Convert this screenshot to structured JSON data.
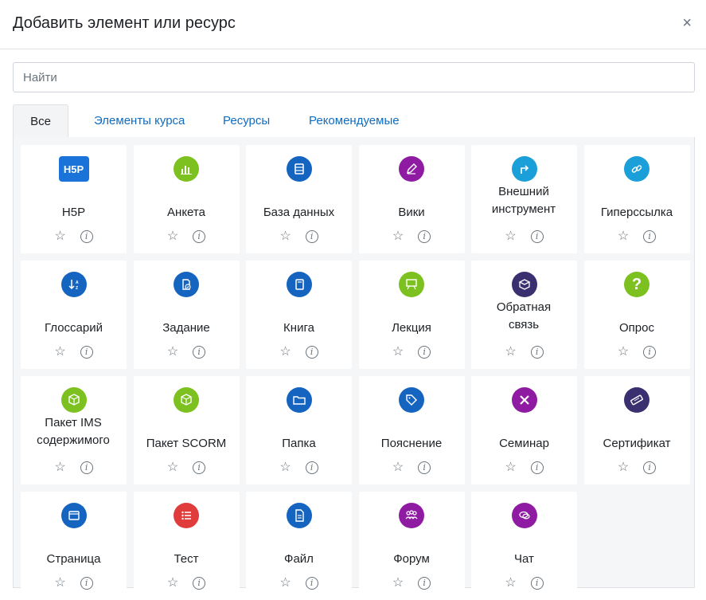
{
  "modal": {
    "title": "Добавить элемент или ресурс",
    "close": "×"
  },
  "search": {
    "placeholder": "Найти"
  },
  "tabs": [
    "Все",
    "Элементы курса",
    "Ресурсы",
    "Рекомендуемые"
  ],
  "items": [
    {
      "label": "H5P",
      "icon": "h5p-icon",
      "color": "#1a73d9"
    },
    {
      "label": "Анкета",
      "icon": "chart-icon",
      "color": "#7cc120"
    },
    {
      "label": "База данных",
      "icon": "database-icon",
      "color": "#1565c0"
    },
    {
      "label": "Вики",
      "icon": "pencil-icon",
      "color": "#8e1ba2"
    },
    {
      "label": "Внешний инструмент",
      "icon": "external-icon",
      "color": "#1a9fd9"
    },
    {
      "label": "Гиперссылка",
      "icon": "link-icon",
      "color": "#1a9fd9"
    },
    {
      "label": "Глоссарий",
      "icon": "sort-icon",
      "color": "#1565c0"
    },
    {
      "label": "Задание",
      "icon": "assignment-icon",
      "color": "#1565c0"
    },
    {
      "label": "Книга",
      "icon": "book-icon",
      "color": "#1565c0"
    },
    {
      "label": "Лекция",
      "icon": "presentation-icon",
      "color": "#7cc120"
    },
    {
      "label": "Обратная связь",
      "icon": "feedback-icon",
      "color": "#3a3070"
    },
    {
      "label": "Опрос",
      "icon": "question-icon",
      "color": "#7cc120"
    },
    {
      "label": "Пакет IMS содержимого",
      "icon": "package-icon",
      "color": "#7cc120"
    },
    {
      "label": "Пакет SCORM",
      "icon": "package-icon",
      "color": "#7cc120"
    },
    {
      "label": "Папка",
      "icon": "folder-icon",
      "color": "#1565c0"
    },
    {
      "label": "Пояснение",
      "icon": "tag-icon",
      "color": "#1565c0"
    },
    {
      "label": "Семинар",
      "icon": "tools-icon",
      "color": "#8e1ba2"
    },
    {
      "label": "Сертификат",
      "icon": "certificate-icon",
      "color": "#3a3070"
    },
    {
      "label": "Страница",
      "icon": "page-icon",
      "color": "#1565c0"
    },
    {
      "label": "Тест",
      "icon": "list-icon",
      "color": "#e03c3c"
    },
    {
      "label": "Файл",
      "icon": "file-icon",
      "color": "#1565c0"
    },
    {
      "label": "Форум",
      "icon": "users-icon",
      "color": "#8e1ba2"
    },
    {
      "label": "Чат",
      "icon": "chat-icon",
      "color": "#8e1ba2"
    }
  ]
}
